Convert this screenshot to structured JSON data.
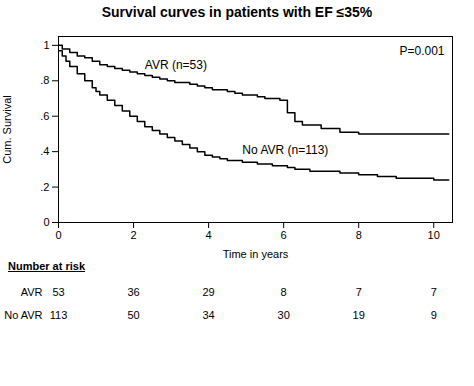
{
  "chart_data": {
    "type": "line",
    "line_style": "step",
    "title": "Survival curves in patients with EF ≤35%",
    "x_label": "Time in years",
    "y_label": "Cum. Survival",
    "annotations": [
      "P=0.001"
    ],
    "xlim": [
      0,
      10.5
    ],
    "ylim": [
      0,
      1.05
    ],
    "xticks": [
      0,
      2,
      4,
      6,
      8,
      10
    ],
    "yticks": [
      0,
      {
        "value": 0.2,
        "label": ".2"
      },
      {
        "value": 0.4,
        "label": ".4"
      },
      {
        "value": 0.6,
        "label": ".6"
      },
      {
        "value": 0.8,
        "label": ".8"
      },
      1
    ],
    "grid": false,
    "series": [
      {
        "name": "AVR (n=53)",
        "color": "#000000",
        "x": [
          0,
          0.1,
          0.3,
          0.5,
          0.7,
          0.9,
          1.1,
          1.3,
          1.5,
          1.7,
          1.9,
          2.1,
          2.3,
          2.5,
          2.7,
          2.9,
          3.1,
          3.3,
          3.5,
          3.7,
          3.9,
          4.1,
          4.3,
          4.5,
          4.7,
          4.9,
          5.1,
          5.3,
          5.5,
          5.7,
          5.9,
          6.1,
          6.3,
          6.5,
          7.0,
          7.5,
          8.0,
          8.5,
          9.0,
          9.5,
          10.0,
          10.4
        ],
        "values": [
          1.0,
          0.98,
          0.96,
          0.94,
          0.93,
          0.91,
          0.89,
          0.88,
          0.87,
          0.86,
          0.85,
          0.84,
          0.83,
          0.82,
          0.81,
          0.8,
          0.79,
          0.79,
          0.78,
          0.77,
          0.76,
          0.75,
          0.75,
          0.74,
          0.73,
          0.72,
          0.72,
          0.71,
          0.7,
          0.7,
          0.69,
          0.62,
          0.57,
          0.55,
          0.53,
          0.51,
          0.5,
          0.5,
          0.5,
          0.5,
          0.5,
          0.5
        ]
      },
      {
        "name": "No AVR (n=113)",
        "color": "#000000",
        "x": [
          0,
          0.1,
          0.2,
          0.3,
          0.5,
          0.7,
          0.9,
          1.0,
          1.1,
          1.3,
          1.5,
          1.7,
          1.9,
          2.1,
          2.3,
          2.5,
          2.7,
          2.9,
          3.1,
          3.3,
          3.5,
          3.7,
          3.9,
          4.1,
          4.3,
          4.5,
          4.7,
          4.9,
          5.1,
          5.3,
          5.5,
          5.7,
          5.9,
          6.1,
          6.3,
          6.5,
          6.7,
          6.9,
          7.1,
          7.5,
          8.0,
          8.5,
          9.0,
          9.5,
          10.0,
          10.4
        ],
        "values": [
          0.97,
          0.94,
          0.91,
          0.88,
          0.84,
          0.8,
          0.76,
          0.74,
          0.72,
          0.69,
          0.66,
          0.63,
          0.6,
          0.57,
          0.54,
          0.52,
          0.5,
          0.48,
          0.46,
          0.44,
          0.42,
          0.4,
          0.38,
          0.37,
          0.36,
          0.35,
          0.35,
          0.34,
          0.34,
          0.33,
          0.33,
          0.32,
          0.32,
          0.31,
          0.3,
          0.3,
          0.29,
          0.29,
          0.29,
          0.28,
          0.27,
          0.26,
          0.25,
          0.25,
          0.24,
          0.24
        ]
      }
    ],
    "risk_table": {
      "title": "Number at risk",
      "times": [
        0,
        2,
        4,
        6,
        8,
        10
      ],
      "rows": [
        {
          "name": "AVR",
          "values": [
            53,
            36,
            29,
            8,
            7,
            7
          ]
        },
        {
          "name": "No AVR",
          "values": [
            113,
            50,
            34,
            30,
            19,
            9
          ]
        }
      ]
    }
  }
}
